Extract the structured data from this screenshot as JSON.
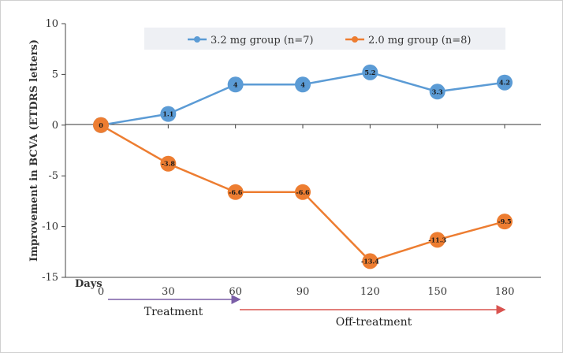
{
  "chart_data": {
    "type": "line",
    "ylabel": "Improvement in BCVA (ETDRS letters)",
    "xlabel": "Days",
    "x": [
      0,
      30,
      60,
      90,
      120,
      150,
      180
    ],
    "x_tick_labels": [
      "0",
      "30",
      "60",
      "90",
      "120",
      "150",
      "180"
    ],
    "ylim": [
      -15,
      10
    ],
    "y_ticks": [
      10,
      5,
      0,
      -5,
      -10,
      -15
    ],
    "series": [
      {
        "name": "3.2 mg group (n=7)",
        "color": "#5b9bd5",
        "values": [
          0,
          1.1,
          4,
          4,
          5.2,
          3.3,
          4.2
        ],
        "labels": [
          "0",
          "1.1",
          "4",
          "4",
          "5.2",
          "3.3",
          "4.2"
        ]
      },
      {
        "name": "2.0 mg group (n=8)",
        "color": "#ed7d31",
        "values": [
          0,
          -3.8,
          -6.6,
          -6.6,
          -13.4,
          -11.3,
          -9.5
        ],
        "labels": [
          "0",
          "-3.8",
          "-6.6",
          "-6.6",
          "-13.4",
          "-11.3",
          "-9.5"
        ]
      }
    ],
    "annotations": {
      "treatment": {
        "label": "Treatment",
        "from": 0,
        "to": 60,
        "color": "#7b5ea7"
      },
      "off_treatment": {
        "label": "Off-treatment",
        "from": 60,
        "to": 180,
        "color": "#d9534f"
      }
    },
    "grid": false,
    "legend": "top"
  }
}
